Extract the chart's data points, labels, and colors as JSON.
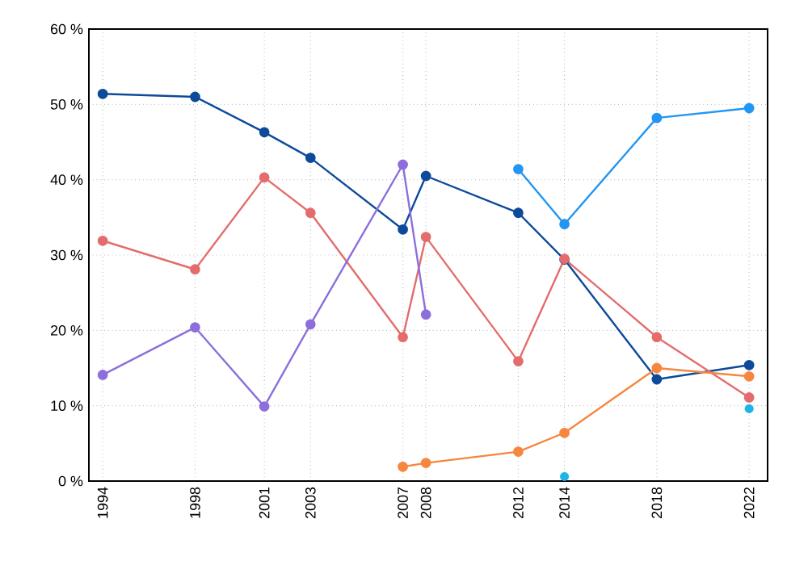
{
  "chart_data": {
    "type": "line",
    "x": [
      1994,
      1998,
      2001,
      2003,
      2007,
      2008,
      2012,
      2014,
      2018,
      2022
    ],
    "xlim": [
      1993.4,
      2022.8
    ],
    "xticks": [
      1994,
      1998,
      2001,
      2003,
      2007,
      2008,
      2012,
      2014,
      2018,
      2022
    ],
    "ylim": [
      0,
      60
    ],
    "yticks": [
      {
        "value": 0,
        "label": "0 %"
      },
      {
        "value": 10,
        "label": "10 %"
      },
      {
        "value": 20,
        "label": "20 %"
      },
      {
        "value": 30,
        "label": "30 %"
      },
      {
        "value": 40,
        "label": "40 %"
      },
      {
        "value": 50,
        "label": "50 %"
      },
      {
        "value": 60,
        "label": "60 %"
      }
    ],
    "grid": true,
    "marker": "circle",
    "line_style": "solid",
    "series": [
      {
        "color": "#0d4a9a",
        "values": [
          51.4,
          51.0,
          46.3,
          42.9,
          33.4,
          40.5,
          35.6,
          29.4,
          13.5,
          15.4
        ]
      },
      {
        "color": "#e46c6c",
        "values": [
          31.9,
          28.1,
          40.3,
          35.6,
          19.1,
          32.4,
          15.9,
          29.5,
          19.1,
          11.1
        ]
      },
      {
        "color": "#8c6fdc",
        "values": [
          14.1,
          20.4,
          9.9,
          20.8,
          42.0,
          22.1,
          null,
          null,
          null,
          null
        ]
      },
      {
        "color": "#f7863f",
        "values": [
          null,
          null,
          null,
          null,
          1.9,
          2.4,
          3.9,
          6.4,
          15.0,
          13.9
        ]
      },
      {
        "color": "#2196f3",
        "values": [
          null,
          null,
          null,
          null,
          null,
          null,
          41.4,
          34.1,
          48.2,
          49.5
        ]
      },
      {
        "type": "scatter",
        "color": "#1eb4e6",
        "values": [
          null,
          null,
          null,
          null,
          null,
          null,
          null,
          0.6,
          null,
          9.6
        ]
      }
    ]
  }
}
